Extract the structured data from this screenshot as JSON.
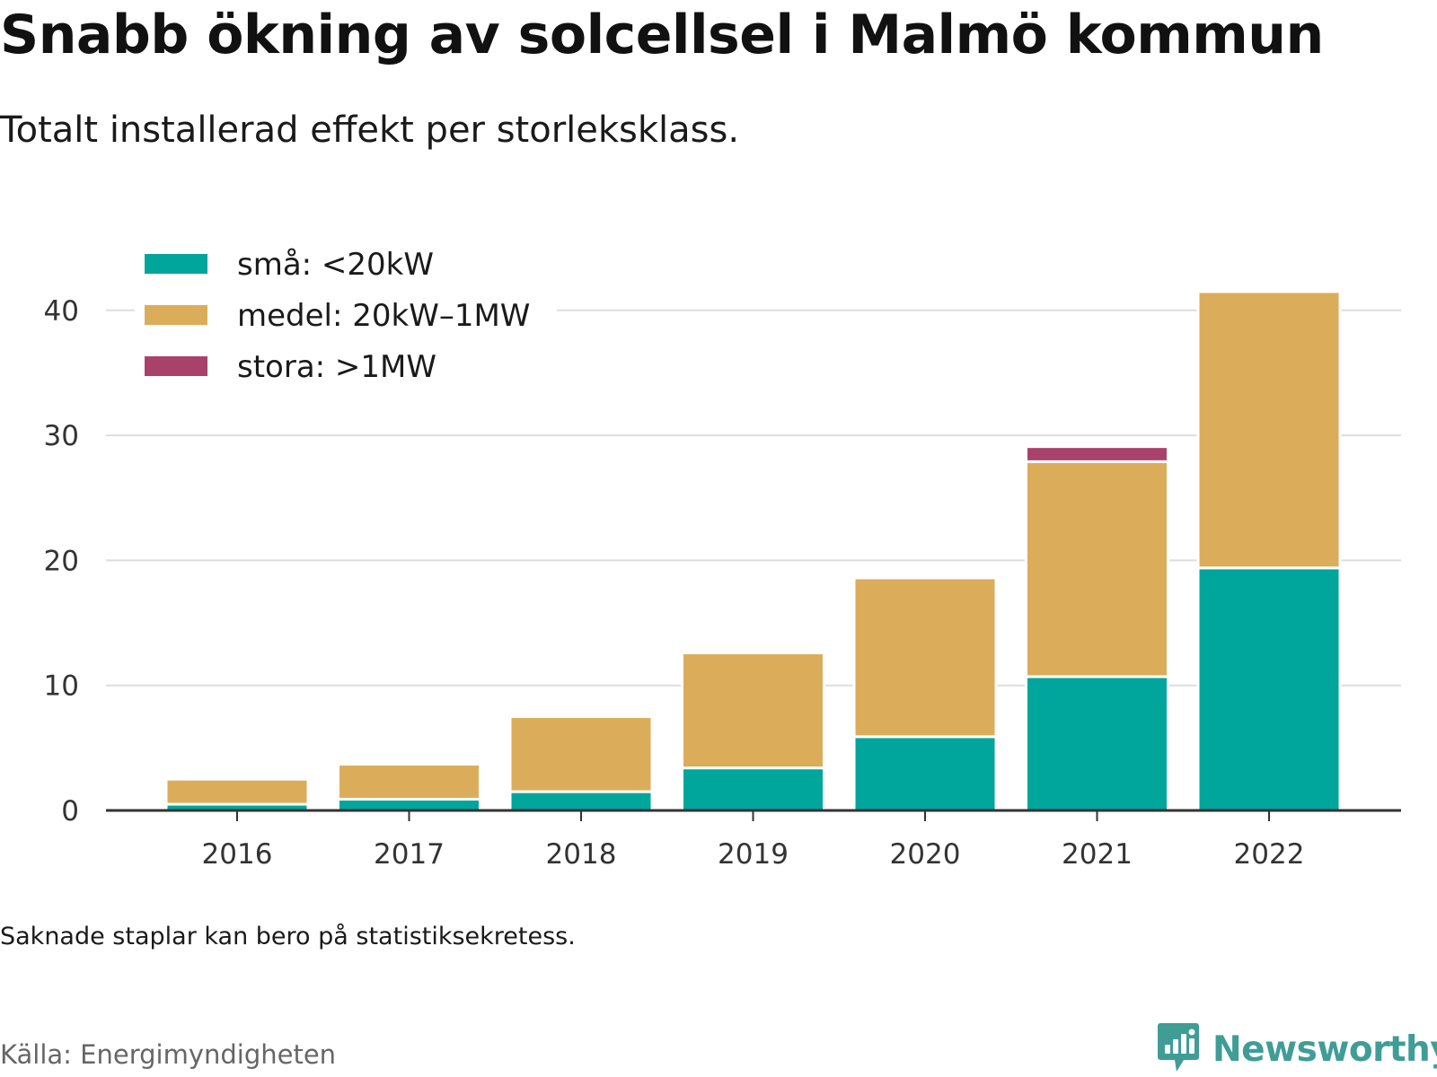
{
  "title": "Snabb ökning av solcellsel i Malmö kommun",
  "subtitle": "Totalt installerad effekt per storleksklass.",
  "note": "Saknade staplar kan bero på statistiksekretess.",
  "source": "Källa: Energimyndigheten",
  "brand": "Newsworthy",
  "colors": {
    "small": "#00a59b",
    "medium": "#dbad5a",
    "large": "#a8426b",
    "grid": "#dddddd",
    "axis": "#333333",
    "brand": "#3f9d96"
  },
  "chart_data": {
    "type": "bar",
    "stacked": true,
    "categories": [
      "2016",
      "2017",
      "2018",
      "2019",
      "2020",
      "2021",
      "2022"
    ],
    "series": [
      {
        "name": "små: <20kW",
        "color": "#00a59b",
        "values": [
          0.5,
          0.9,
          1.5,
          3.4,
          5.9,
          10.7,
          19.4
        ]
      },
      {
        "name": "medel: 20kW–1MW",
        "color": "#dbad5a",
        "values": [
          2.0,
          2.8,
          6.0,
          9.2,
          12.7,
          17.2,
          22.1
        ]
      },
      {
        "name": "stora: >1MW",
        "color": "#a8426b",
        "values": [
          0,
          0,
          0,
          0,
          0,
          1.2,
          0
        ]
      }
    ],
    "yticks": [
      0,
      10,
      20,
      30,
      40
    ],
    "ylim": [
      0,
      43
    ],
    "grid": true,
    "legend_position": "top-left"
  }
}
